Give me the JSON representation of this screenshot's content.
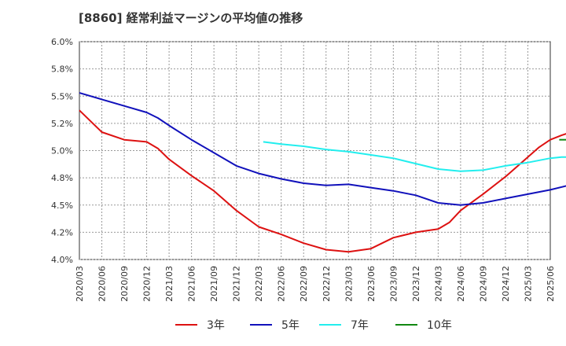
{
  "chart_data": {
    "type": "line",
    "title": "[8860]  経常利益マージンの平均値の推移",
    "xlabel": "",
    "ylabel": "",
    "y_tick_labels": [
      "6.0%",
      "5.8%",
      "5.5%",
      "5.2%",
      "5.0%",
      "4.8%",
      "4.5%",
      "4.2%",
      "4.0%"
    ],
    "ylim": [
      4.0,
      6.0
    ],
    "y_ticks": [
      6.0,
      5.75,
      5.5,
      5.25,
      5.0,
      4.75,
      4.5,
      4.25,
      4.0
    ],
    "x_tick_labels": [
      "2020/03",
      "2020/06",
      "2020/09",
      "2020/12",
      "2021/03",
      "2021/06",
      "2021/09",
      "2021/12",
      "2022/03",
      "2022/06",
      "2022/09",
      "2022/12",
      "2023/03",
      "2023/06",
      "2023/09",
      "2023/12",
      "2024/03",
      "2024/06",
      "2024/09",
      "2024/12",
      "2025/03",
      "2025/06"
    ],
    "grid": true,
    "legend_position": "bottom",
    "series": [
      {
        "name": "3年",
        "color": "#dd1111",
        "points": [
          [
            0,
            5.37
          ],
          [
            1,
            5.17
          ],
          [
            2,
            5.1
          ],
          [
            3,
            5.08
          ],
          [
            3.5,
            5.02
          ],
          [
            4,
            4.92
          ],
          [
            5,
            4.77
          ],
          [
            6,
            4.63
          ],
          [
            7,
            4.45
          ],
          [
            8,
            4.3
          ],
          [
            9,
            4.23
          ],
          [
            10,
            4.15
          ],
          [
            11,
            4.09
          ],
          [
            12,
            4.07
          ],
          [
            13,
            4.1
          ],
          [
            14,
            4.2
          ],
          [
            15,
            4.25
          ],
          [
            16,
            4.28
          ],
          [
            16.5,
            4.34
          ],
          [
            17,
            4.45
          ],
          [
            18,
            4.6
          ],
          [
            19,
            4.76
          ],
          [
            20,
            4.94
          ],
          [
            20.5,
            5.03
          ],
          [
            21,
            5.1
          ],
          [
            21.5,
            5.14
          ],
          [
            21.8,
            5.16
          ]
        ]
      },
      {
        "name": "5年",
        "color": "#1111bb",
        "points": [
          [
            0,
            5.53
          ],
          [
            1,
            5.47
          ],
          [
            2,
            5.41
          ],
          [
            3,
            5.35
          ],
          [
            3.5,
            5.3
          ],
          [
            4,
            5.23
          ],
          [
            5,
            5.1
          ],
          [
            6,
            4.98
          ],
          [
            7,
            4.86
          ],
          [
            8,
            4.79
          ],
          [
            9,
            4.74
          ],
          [
            10,
            4.7
          ],
          [
            11,
            4.68
          ],
          [
            12,
            4.69
          ],
          [
            13,
            4.66
          ],
          [
            14,
            4.63
          ],
          [
            15,
            4.59
          ],
          [
            16,
            4.52
          ],
          [
            17,
            4.5
          ],
          [
            18,
            4.52
          ],
          [
            19,
            4.56
          ],
          [
            20,
            4.6
          ],
          [
            21,
            4.64
          ],
          [
            21.8,
            4.68
          ]
        ]
      },
      {
        "name": "7年",
        "color": "#22eeee",
        "points": [
          [
            8.2,
            5.08
          ],
          [
            9,
            5.06
          ],
          [
            10,
            5.04
          ],
          [
            11,
            5.01
          ],
          [
            12,
            4.99
          ],
          [
            13,
            4.96
          ],
          [
            14,
            4.93
          ],
          [
            15,
            4.88
          ],
          [
            16,
            4.83
          ],
          [
            17,
            4.81
          ],
          [
            18,
            4.82
          ],
          [
            18.5,
            4.84
          ],
          [
            19,
            4.86
          ],
          [
            20,
            4.89
          ],
          [
            21,
            4.93
          ],
          [
            21.5,
            4.94
          ],
          [
            21.8,
            4.94
          ]
        ]
      },
      {
        "name": "10年",
        "color": "#118811",
        "points": [
          [
            21.4,
            5.1
          ],
          [
            21.8,
            5.1
          ]
        ]
      }
    ]
  }
}
